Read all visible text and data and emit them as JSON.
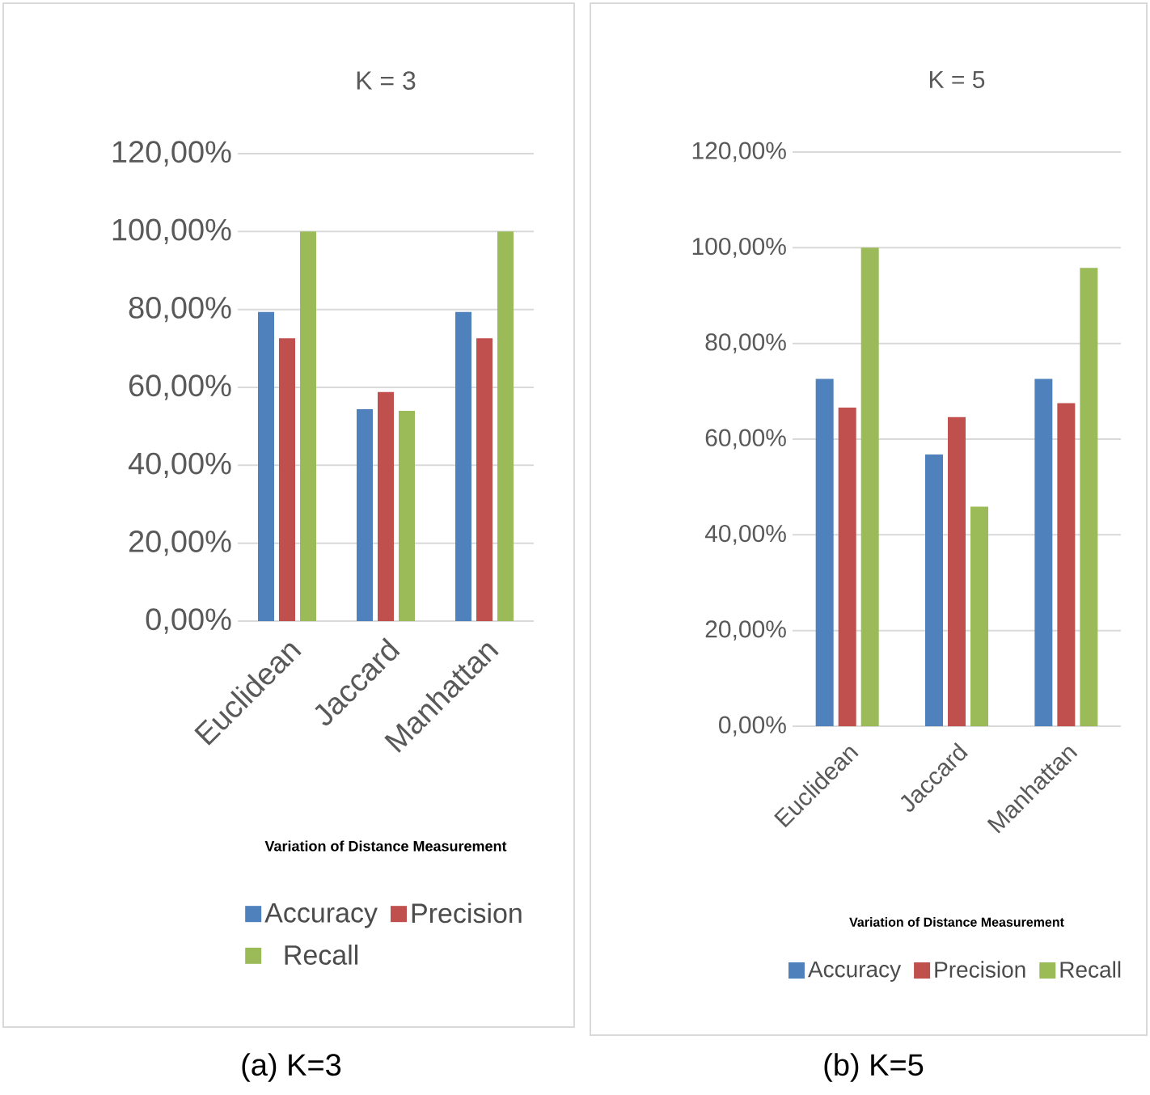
{
  "chart_data": [
    {
      "type": "bar",
      "title": "K = 3",
      "xlabel": "Variation of Distance Measurement",
      "categories": [
        "Euclidean",
        "Jaccard",
        "Manhattan"
      ],
      "series": [
        {
          "name": "Accuracy",
          "color": "#4f81bd",
          "values": [
            79.4,
            54.4,
            79.4
          ]
        },
        {
          "name": "Precision",
          "color": "#c0504d",
          "values": [
            72.6,
            58.8,
            72.6
          ]
        },
        {
          "name": "Recall",
          "color": "#9bbb59",
          "values": [
            100,
            54.0,
            100
          ]
        }
      ],
      "ylim": [
        0,
        120
      ],
      "yticks": [
        {
          "value": 0,
          "label": "0,00%"
        },
        {
          "value": 20,
          "label": "20,00%"
        },
        {
          "value": 40,
          "label": "40,00%"
        },
        {
          "value": 60,
          "label": "60,00%"
        },
        {
          "value": 80,
          "label": "80,00%"
        },
        {
          "value": 100,
          "label": "100,00%"
        },
        {
          "value": 120,
          "label": "120,00%"
        }
      ],
      "grid": "y",
      "legend": "bottom",
      "annotations": [
        "(a) K=3"
      ]
    },
    {
      "type": "bar",
      "title": "K = 5",
      "xlabel": "Variation of Distance Measurement",
      "categories": [
        "Euclidean",
        "Jaccard",
        "Manhattan"
      ],
      "series": [
        {
          "name": "Accuracy",
          "color": "#4f81bd",
          "values": [
            72.6,
            56.8,
            72.6
          ]
        },
        {
          "name": "Precision",
          "color": "#c0504d",
          "values": [
            66.6,
            64.6,
            67.5
          ]
        },
        {
          "name": "Recall",
          "color": "#9bbb59",
          "values": [
            100,
            45.9,
            95.8
          ]
        }
      ],
      "ylim": [
        0,
        120
      ],
      "yticks": [
        {
          "value": 0,
          "label": "0,00%"
        },
        {
          "value": 20,
          "label": "20,00%"
        },
        {
          "value": 40,
          "label": "40,00%"
        },
        {
          "value": 60,
          "label": "60,00%"
        },
        {
          "value": 80,
          "label": "80,00%"
        },
        {
          "value": 100,
          "label": "100,00%"
        },
        {
          "value": 120,
          "label": "120,00%"
        }
      ],
      "grid": "y",
      "legend": "bottom",
      "annotations": [
        "(b) K=5"
      ]
    }
  ]
}
